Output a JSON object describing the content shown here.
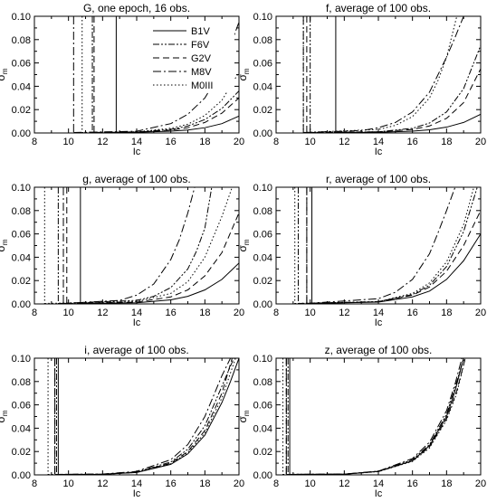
{
  "chart_data": [
    {
      "type": "line",
      "title": "G, one epoch, 16 obs.",
      "xlabel": "Ic",
      "ylabel": "σ_m",
      "ylabel_main": "σ",
      "ylabel_sub": "m",
      "xlim": [
        8,
        20
      ],
      "ylim": [
        0,
        0.1
      ],
      "xticks": [
        8,
        10,
        12,
        14,
        16,
        18,
        20
      ],
      "yticks": [
        0.0,
        0.02,
        0.04,
        0.06,
        0.08,
        0.1
      ],
      "ytick_labels": [
        "0.00",
        "0.02",
        "0.04",
        "0.06",
        "0.08",
        "0.10"
      ],
      "legend": {
        "position": "top-right",
        "entries": [
          {
            "label": "B1V",
            "dash": "solid"
          },
          {
            "label": "F6V",
            "dash": "dash-dot-dot"
          },
          {
            "label": "G2V",
            "dash": "dashed"
          },
          {
            "label": "M8V",
            "dash": "dash-dot"
          },
          {
            "label": "M0III",
            "dash": "dotted"
          }
        ]
      },
      "series": [
        {
          "dash": "solid",
          "saturation_mag": 12.8,
          "x": [
            12.8,
            14,
            16,
            17,
            18,
            19,
            20
          ],
          "y": [
            0.0004,
            0.0006,
            0.0015,
            0.0025,
            0.0045,
            0.008,
            0.0145
          ]
        },
        {
          "dash": "dash-dot-dot",
          "saturation_mag": 11.4,
          "x": [
            11.4,
            14,
            16,
            17,
            18,
            19,
            20
          ],
          "y": [
            0.0004,
            0.0008,
            0.003,
            0.006,
            0.0115,
            0.021,
            0.036
          ]
        },
        {
          "dash": "dashed",
          "saturation_mag": 11.5,
          "x": [
            11.5,
            14,
            16,
            17,
            18,
            19,
            20
          ],
          "y": [
            0.0004,
            0.0007,
            0.0025,
            0.0045,
            0.009,
            0.017,
            0.03
          ]
        },
        {
          "dash": "dash-dot",
          "saturation_mag": 10.3,
          "x": [
            10.3,
            14,
            16,
            17,
            18,
            18.5,
            19,
            19.5,
            20
          ],
          "y": [
            0.0004,
            0.0015,
            0.008,
            0.016,
            0.03,
            0.042,
            0.057,
            0.075,
            0.095
          ]
        },
        {
          "dash": "dotted",
          "saturation_mag": 10.8,
          "x": [
            10.8,
            14,
            16,
            17,
            18,
            19,
            20
          ],
          "y": [
            0.0004,
            0.001,
            0.004,
            0.0075,
            0.015,
            0.028,
            0.052
          ]
        }
      ]
    },
    {
      "type": "line",
      "title": "f, average of 100 obs.",
      "xlabel": "Ic",
      "ylabel": "σ_m",
      "ylabel_main": "σ",
      "ylabel_sub": "m",
      "xlim": [
        8,
        20
      ],
      "ylim": [
        0,
        0.1
      ],
      "xticks": [
        8,
        10,
        12,
        14,
        16,
        18,
        20
      ],
      "yticks": [
        0.0,
        0.02,
        0.04,
        0.06,
        0.08,
        0.1
      ],
      "ytick_labels": [
        "0.00",
        "0.02",
        "0.04",
        "0.06",
        "0.08",
        "0.10"
      ],
      "series": [
        {
          "dash": "solid",
          "saturation_mag": 11.5,
          "x": [
            11.5,
            14,
            16,
            17,
            18,
            19,
            20
          ],
          "y": [
            0.0004,
            0.0006,
            0.0015,
            0.0027,
            0.005,
            0.009,
            0.016
          ]
        },
        {
          "dash": "dash-dot-dot",
          "saturation_mag": 10.0,
          "x": [
            10.0,
            14,
            16,
            17,
            18,
            19,
            20
          ],
          "y": [
            0.0004,
            0.001,
            0.004,
            0.0085,
            0.018,
            0.038,
            0.075
          ]
        },
        {
          "dash": "dashed",
          "saturation_mag": 9.8,
          "x": [
            9.8,
            14,
            16,
            17,
            18,
            19,
            20
          ],
          "y": [
            0.0004,
            0.001,
            0.003,
            0.006,
            0.0125,
            0.026,
            0.055
          ]
        },
        {
          "dash": "dash-dot",
          "saturation_mag": 9.6,
          "x": [
            9.6,
            13,
            14,
            15,
            16,
            17,
            18,
            18.5,
            19
          ],
          "y": [
            0.0004,
            0.002,
            0.0045,
            0.009,
            0.018,
            0.035,
            0.065,
            0.082,
            0.1
          ]
        },
        {
          "dash": "dotted",
          "saturation_mag": 9.6,
          "x": [
            9.6,
            14,
            15,
            16,
            17,
            17.5,
            18,
            18.6
          ],
          "y": [
            0.0004,
            0.003,
            0.0065,
            0.014,
            0.03,
            0.045,
            0.065,
            0.1
          ]
        }
      ]
    },
    {
      "type": "line",
      "title": "g, average of 100 obs.",
      "xlabel": "Ic",
      "ylabel": "σ_m",
      "ylabel_main": "σ",
      "ylabel_sub": "m",
      "xlim": [
        8,
        20
      ],
      "ylim": [
        0,
        0.1
      ],
      "xticks": [
        8,
        10,
        12,
        14,
        16,
        18,
        20
      ],
      "yticks": [
        0.0,
        0.02,
        0.04,
        0.06,
        0.08,
        0.1
      ],
      "ytick_labels": [
        "0.00",
        "0.02",
        "0.04",
        "0.06",
        "0.08",
        "0.10"
      ],
      "series": [
        {
          "dash": "solid",
          "saturation_mag": 10.7,
          "x": [
            10.7,
            14,
            16,
            17,
            18,
            19,
            20
          ],
          "y": [
            0.0004,
            0.001,
            0.0035,
            0.0065,
            0.012,
            0.021,
            0.035
          ]
        },
        {
          "dash": "dash-dot-dot",
          "saturation_mag": 9.4,
          "x": [
            9.4,
            14,
            15,
            16,
            17,
            17.5,
            18,
            18.4
          ],
          "y": [
            0.0004,
            0.003,
            0.0065,
            0.014,
            0.03,
            0.045,
            0.065,
            0.1
          ]
        },
        {
          "dash": "dashed",
          "saturation_mag": 9.9,
          "x": [
            9.9,
            14,
            16,
            17,
            18,
            19,
            20
          ],
          "y": [
            0.0004,
            0.0015,
            0.006,
            0.012,
            0.024,
            0.044,
            0.078
          ]
        },
        {
          "dash": "dash-dot",
          "saturation_mag": 9.7,
          "x": [
            9.7,
            13,
            14,
            15,
            16,
            16.5,
            17,
            17.4
          ],
          "y": [
            0.0004,
            0.003,
            0.0075,
            0.017,
            0.038,
            0.055,
            0.078,
            0.1
          ]
        },
        {
          "dash": "dotted",
          "saturation_mag": 8.6,
          "x": [
            8.6,
            14,
            16,
            17,
            18,
            19,
            19.6
          ],
          "y": [
            0.0004,
            0.002,
            0.009,
            0.019,
            0.04,
            0.075,
            0.1
          ]
        }
      ]
    },
    {
      "type": "line",
      "title": "r, average of 100 obs.",
      "xlabel": "Ic",
      "ylabel": "σ_m",
      "ylabel_main": "σ",
      "ylabel_sub": "m",
      "xlim": [
        8,
        20
      ],
      "ylim": [
        0,
        0.1
      ],
      "xticks": [
        8,
        10,
        12,
        14,
        16,
        18,
        20
      ],
      "yticks": [
        0.0,
        0.02,
        0.04,
        0.06,
        0.08,
        0.1
      ],
      "ytick_labels": [
        "0.00",
        "0.02",
        "0.04",
        "0.06",
        "0.08",
        "0.10"
      ],
      "series": [
        {
          "dash": "solid",
          "saturation_mag": 10.1,
          "x": [
            10.1,
            14,
            16,
            17,
            18,
            19,
            20
          ],
          "y": [
            0.0004,
            0.0015,
            0.006,
            0.011,
            0.021,
            0.037,
            0.06
          ]
        },
        {
          "dash": "dash-dot-dot",
          "saturation_mag": 9.3,
          "x": [
            9.3,
            14,
            16,
            17,
            18,
            19,
            19.8
          ],
          "y": [
            0.0004,
            0.002,
            0.008,
            0.016,
            0.032,
            0.062,
            0.1
          ]
        },
        {
          "dash": "dashed",
          "saturation_mag": 9.8,
          "x": [
            9.8,
            14,
            16,
            17,
            18,
            19,
            20
          ],
          "y": [
            0.0004,
            0.0018,
            0.0075,
            0.0145,
            0.028,
            0.05,
            0.08
          ]
        },
        {
          "dash": "dash-dot",
          "saturation_mag": 9.8,
          "x": [
            9.8,
            14,
            15,
            16,
            17,
            17.5,
            18,
            18.5
          ],
          "y": [
            0.0004,
            0.0045,
            0.01,
            0.021,
            0.043,
            0.061,
            0.08,
            0.1
          ]
        },
        {
          "dash": "dotted",
          "saturation_mag": 9.1,
          "x": [
            9.1,
            14,
            16,
            17,
            18,
            19,
            19.6
          ],
          "y": [
            0.0004,
            0.002,
            0.009,
            0.018,
            0.036,
            0.068,
            0.1
          ]
        }
      ]
    },
    {
      "type": "line",
      "title": "i, average of 100 obs.",
      "xlabel": "Ic",
      "ylabel": "σ_m",
      "ylabel_main": "σ",
      "ylabel_sub": "m",
      "xlim": [
        8,
        20
      ],
      "ylim": [
        0,
        0.1
      ],
      "xticks": [
        8,
        10,
        12,
        14,
        16,
        18,
        20
      ],
      "yticks": [
        0.0,
        0.02,
        0.04,
        0.06,
        0.08,
        0.1
      ],
      "ytick_labels": [
        "0.00",
        "0.02",
        "0.04",
        "0.06",
        "0.08",
        "0.10"
      ],
      "series": [
        {
          "dash": "solid",
          "saturation_mag": 9.4,
          "x": [
            9.4,
            12,
            14,
            16,
            17,
            18,
            19,
            19.5,
            20
          ],
          "y": [
            0.0004,
            0.0005,
            0.002,
            0.009,
            0.018,
            0.034,
            0.062,
            0.08,
            0.1
          ]
        },
        {
          "dash": "dash-dot-dot",
          "saturation_mag": 9.3,
          "x": [
            9.3,
            12,
            14,
            16,
            17,
            18,
            19,
            19.7
          ],
          "y": [
            0.0004,
            0.0006,
            0.0025,
            0.011,
            0.022,
            0.042,
            0.076,
            0.1
          ]
        },
        {
          "dash": "dashed",
          "saturation_mag": 9.2,
          "x": [
            9.2,
            12,
            14,
            16,
            17,
            18,
            19,
            19.6
          ],
          "y": [
            0.0004,
            0.0005,
            0.0022,
            0.01,
            0.02,
            0.038,
            0.07,
            0.1
          ]
        },
        {
          "dash": "dash-dot",
          "saturation_mag": 9.2,
          "x": [
            9.2,
            12,
            14,
            16,
            17,
            18,
            19,
            19.5
          ],
          "y": [
            0.0004,
            0.0007,
            0.003,
            0.013,
            0.026,
            0.05,
            0.085,
            0.1
          ]
        },
        {
          "dash": "dotted",
          "saturation_mag": 8.8,
          "x": [
            8.8,
            12,
            14,
            16,
            17,
            18,
            19,
            19.8
          ],
          "y": [
            0.0004,
            0.0005,
            0.0021,
            0.0095,
            0.019,
            0.036,
            0.066,
            0.1
          ]
        }
      ]
    },
    {
      "type": "line",
      "title": "z, average of 100 obs.",
      "xlabel": "Ic",
      "ylabel": "σ_m",
      "ylabel_main": "σ",
      "ylabel_sub": "m",
      "xlim": [
        8,
        20
      ],
      "ylim": [
        0,
        0.1
      ],
      "xticks": [
        8,
        10,
        12,
        14,
        16,
        18,
        20
      ],
      "yticks": [
        0.0,
        0.02,
        0.04,
        0.06,
        0.08,
        0.1
      ],
      "ytick_labels": [
        "0.00",
        "0.02",
        "0.04",
        "0.06",
        "0.08",
        "0.10"
      ],
      "series": [
        {
          "dash": "solid",
          "saturation_mag": 8.8,
          "x": [
            8.8,
            12,
            14,
            16,
            17,
            18,
            18.5,
            19
          ],
          "y": [
            0.0004,
            0.0006,
            0.003,
            0.012,
            0.025,
            0.05,
            0.072,
            0.1
          ]
        },
        {
          "dash": "dash-dot-dot",
          "saturation_mag": 8.7,
          "x": [
            8.7,
            12,
            14,
            16,
            17,
            18,
            18.5,
            19
          ],
          "y": [
            0.0004,
            0.0006,
            0.003,
            0.013,
            0.026,
            0.052,
            0.075,
            0.1
          ]
        },
        {
          "dash": "dashed",
          "saturation_mag": 8.6,
          "x": [
            8.6,
            12,
            14,
            16,
            17,
            18,
            18.6,
            19.1
          ],
          "y": [
            0.0004,
            0.0006,
            0.0028,
            0.012,
            0.024,
            0.048,
            0.072,
            0.1
          ]
        },
        {
          "dash": "dash-dot",
          "saturation_mag": 8.6,
          "x": [
            8.6,
            12,
            14,
            16,
            17,
            18,
            18.5,
            18.9
          ],
          "y": [
            0.0004,
            0.0007,
            0.0032,
            0.014,
            0.028,
            0.055,
            0.078,
            0.1
          ]
        },
        {
          "dash": "dotted",
          "saturation_mag": 8.4,
          "x": [
            8.4,
            12,
            14,
            16,
            17,
            18,
            18.6,
            19.1
          ],
          "y": [
            0.0004,
            0.0006,
            0.0028,
            0.0115,
            0.023,
            0.047,
            0.07,
            0.1
          ]
        }
      ]
    }
  ]
}
